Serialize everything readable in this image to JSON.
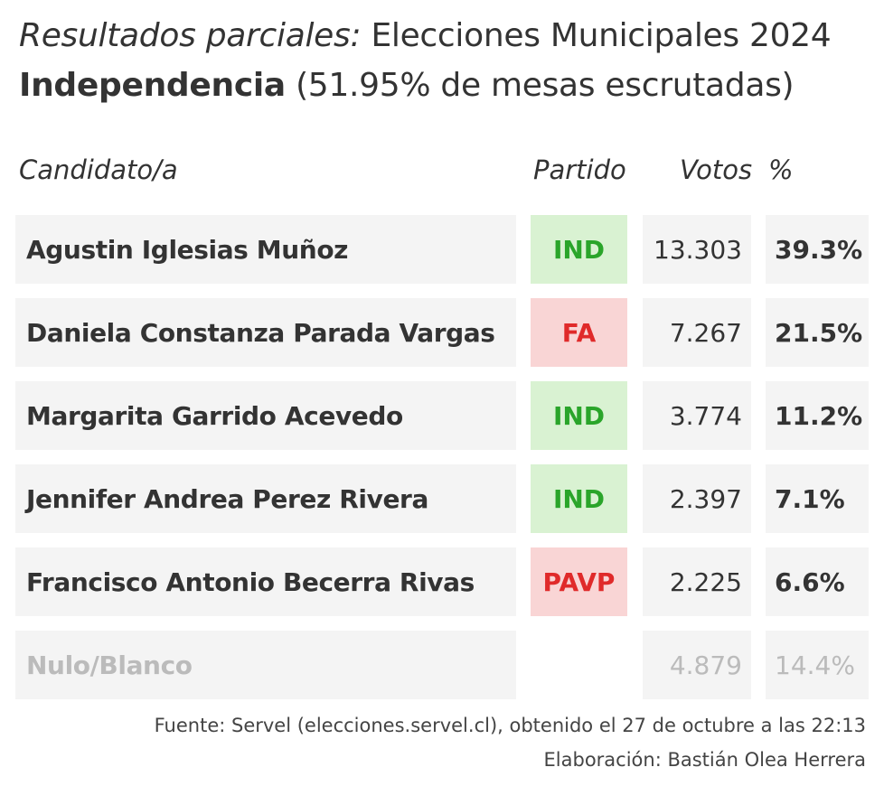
{
  "title": {
    "prefix": "Resultados parciales:",
    "main": " Elecciones Municipales 2024",
    "commune": "Independencia",
    "progress": " (51.95% de mesas escrutadas)"
  },
  "headers": {
    "candidate": "Candidato/a",
    "party": "Partido",
    "votes": "Votos",
    "pct": "%"
  },
  "colors": {
    "IND": {
      "bg": "#d9f2d2",
      "fg": "#2aa52a"
    },
    "FA": {
      "bg": "#f9d5d5",
      "fg": "#e02a2a"
    },
    "PAVP": {
      "bg": "#f9d5d5",
      "fg": "#e02a2a"
    },
    "row_bg": "#f4f4f4",
    "muted_text": "#bbbbbb"
  },
  "chart_data": {
    "type": "table",
    "columns": [
      "Candidato/a",
      "Partido",
      "Votos",
      "%"
    ],
    "rows": [
      {
        "candidate": "Agustin Iglesias Muñoz",
        "party": "IND",
        "votes": "13.303",
        "pct": "39.3%"
      },
      {
        "candidate": "Daniela Constanza Parada Vargas",
        "party": "FA",
        "votes": "7.267",
        "pct": "21.5%"
      },
      {
        "candidate": "Margarita Garrido Acevedo",
        "party": "IND",
        "votes": "3.774",
        "pct": "11.2%"
      },
      {
        "candidate": "Jennifer Andrea Perez Rivera",
        "party": "IND",
        "votes": "2.397",
        "pct": "7.1%"
      },
      {
        "candidate": "Francisco Antonio Becerra Rivas",
        "party": "PAVP",
        "votes": "2.225",
        "pct": "6.6%"
      },
      {
        "candidate": "Nulo/Blanco",
        "party": "",
        "votes": "4.879",
        "pct": "14.4%",
        "muted": true
      }
    ]
  },
  "footer": {
    "source": "Fuente: Servel (elecciones.servel.cl), obtenido el 27 de octubre a las 22:13",
    "credit": "Elaboración: Bastián Olea Herrera"
  }
}
